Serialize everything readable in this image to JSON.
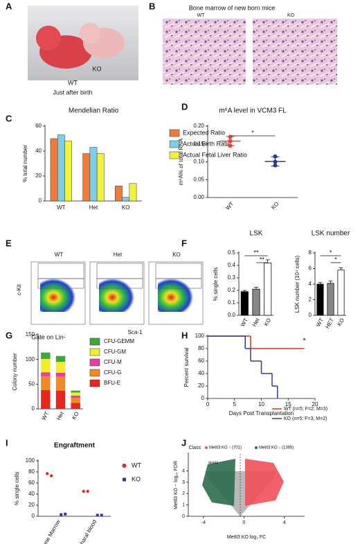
{
  "panel_labels": [
    "A",
    "B",
    "C",
    "D",
    "E",
    "F",
    "G",
    "H",
    "I",
    "J"
  ],
  "panel_a": {
    "wt": "WT",
    "ko": "KO",
    "caption": "Just after birth"
  },
  "panel_b": {
    "title": "Bone marrow of new born mice",
    "wt": "WT",
    "ko": "KO"
  },
  "panel_e": {
    "columns": [
      "WT",
      "Het",
      "KO"
    ],
    "y_label": "c-Kit",
    "x_label": "Sca-1",
    "gate": "Gate on Lin-"
  },
  "chart_data": [
    {
      "type": "grouped_bar",
      "title": "Mendelian Ratio",
      "y_label": "% total number",
      "categories": [
        "WT",
        "Het",
        "KO"
      ],
      "series": [
        {
          "name": "Expected Ratio",
          "color": "#f07c3c",
          "values": [
            50,
            38,
            12
          ]
        },
        {
          "name": "Actual Birth Ratio",
          "color": "#7ccfe6",
          "values": [
            53,
            43,
            3
          ]
        },
        {
          "name": "Actual Fetal Liver Ratio",
          "color": "#f2f23c",
          "values": [
            48,
            38,
            14
          ]
        }
      ],
      "ylim": [
        0,
        60
      ],
      "yticks": [
        0,
        20,
        40,
        60
      ]
    },
    {
      "type": "dot_mean",
      "title": "m⁶A level in VCM3 FL",
      "y_label": "m⁶A% of total RNA",
      "categories": [
        "WT",
        "KO"
      ],
      "points": [
        [
          0.17,
          0.158,
          0.145
        ],
        [
          0.115,
          0.1,
          0.09
        ]
      ],
      "means": [
        0.158,
        0.101
      ],
      "errors": [
        0.013,
        0.013
      ],
      "colors": [
        "#e8413c",
        "#2b3a8c"
      ],
      "ylim": [
        0,
        0.2
      ],
      "yticks": [
        {
          "value": 0,
          "label": "0.00"
        },
        0.05,
        {
          "value": 0.1,
          "label": "0.10"
        },
        0.15,
        {
          "value": 0.2,
          "label": "0.20"
        }
      ],
      "annotations": [
        "*"
      ]
    },
    {
      "type": "bar",
      "title": "LSK",
      "y_label": "% single cells",
      "categories": [
        "WT",
        "Het",
        "KO"
      ],
      "values": [
        0.19,
        0.21,
        0.42
      ],
      "errors": [
        0.01,
        0.015,
        0.025
      ],
      "colors": [
        "#000000",
        "#888888",
        "#ffffff"
      ],
      "ylim": [
        0,
        0.5
      ],
      "yticks": [
        {
          "value": 0,
          "label": "0.0"
        },
        0.1,
        0.2,
        0.3,
        0.4,
        0.5
      ],
      "annotations": [
        "**",
        "**"
      ]
    },
    {
      "type": "bar",
      "title": "LSK number",
      "y_label": "LSK number (10⁴ cells)",
      "categories": [
        "WT",
        "HET",
        "KO"
      ],
      "values": [
        4,
        4.1,
        5.8
      ],
      "errors": [
        0.2,
        0.3,
        0.3
      ],
      "colors": [
        "#000000",
        "#888888",
        "#ffffff"
      ],
      "ylim": [
        0,
        8
      ],
      "yticks": [
        0,
        2,
        4,
        6,
        8
      ],
      "annotations": [
        "*",
        "*"
      ]
    },
    {
      "type": "stacked_bar",
      "y_label": "Colony number",
      "categories": [
        "WT",
        "Het",
        "KO"
      ],
      "series": [
        {
          "name": "BFU-E",
          "color": "#e8261c",
          "values": [
            38,
            37,
            12
          ]
        },
        {
          "name": "CFU-G",
          "color": "#f08a24",
          "values": [
            28,
            28,
            10
          ]
        },
        {
          "name": "CFU-M",
          "color": "#e83ea0",
          "values": [
            8,
            8,
            5
          ]
        },
        {
          "name": "CFU-GM",
          "color": "#f2ee2a",
          "values": [
            27,
            22,
            6
          ]
        },
        {
          "name": "CFU-GEMM",
          "color": "#3aa83a",
          "values": [
            13,
            12,
            4
          ]
        }
      ],
      "ylim": [
        0,
        150
      ],
      "yticks": [
        0,
        50,
        100,
        150
      ]
    },
    {
      "type": "step",
      "x_label": "Days Post Transplantation",
      "y_label": "Percent survival",
      "series": [
        {
          "name": "WT (n=5; F=2, M=3)",
          "color": "#e8261c",
          "x": [
            0,
            8,
            18
          ],
          "values": [
            100,
            80,
            80
          ]
        },
        {
          "name": "KO (n=5; F=3, M=2)",
          "color": "#2b3a9c",
          "x": [
            0,
            7,
            8,
            10,
            12,
            13
          ],
          "values": [
            100,
            80,
            60,
            40,
            20,
            0
          ]
        }
      ],
      "xlim": [
        0,
        20
      ],
      "xticks": [
        0,
        5,
        10,
        15,
        20
      ],
      "ylim": [
        0,
        100
      ],
      "yticks": [
        0,
        20,
        40,
        60,
        80,
        100
      ],
      "annotations": [
        "*"
      ]
    },
    {
      "type": "dot_groups",
      "title": "Engraftment",
      "y_label": "% single cells",
      "categories": [
        "Bone Marrow",
        "Peripharal blood"
      ],
      "series": [
        {
          "name": "WT",
          "color": "#e8261c",
          "values": [
            [
              77,
              73
            ],
            [
              45,
              45
            ]
          ]
        },
        {
          "name": "KO",
          "color": "#2b3a9c",
          "values": [
            [
              3,
              4
            ],
            [
              2,
              2
            ]
          ]
        }
      ],
      "ylim": [
        0,
        100
      ],
      "yticks": [
        0,
        20,
        40,
        60,
        80,
        100
      ]
    },
    {
      "type": "volcano",
      "legend_title": "Class",
      "series": [
        {
          "name": "Mettl3 KO ↑ (701)",
          "color": "#f0505a"
        },
        {
          "name": "Mettl3 KO ↓ (1395)",
          "color": "#2e6b4f"
        }
      ],
      "x_label": "Mettl3 KO log₂ FC",
      "y_label": "Mettl3 KO − log₁₀ FDR",
      "xlim": [
        -5.5,
        6
      ],
      "xticks": [
        -4,
        0,
        4
      ],
      "ylim": [
        0,
        5.5
      ],
      "yticks": [
        0,
        1,
        2,
        3,
        4
      ],
      "annotations": [
        "Mettl3"
      ]
    }
  ]
}
